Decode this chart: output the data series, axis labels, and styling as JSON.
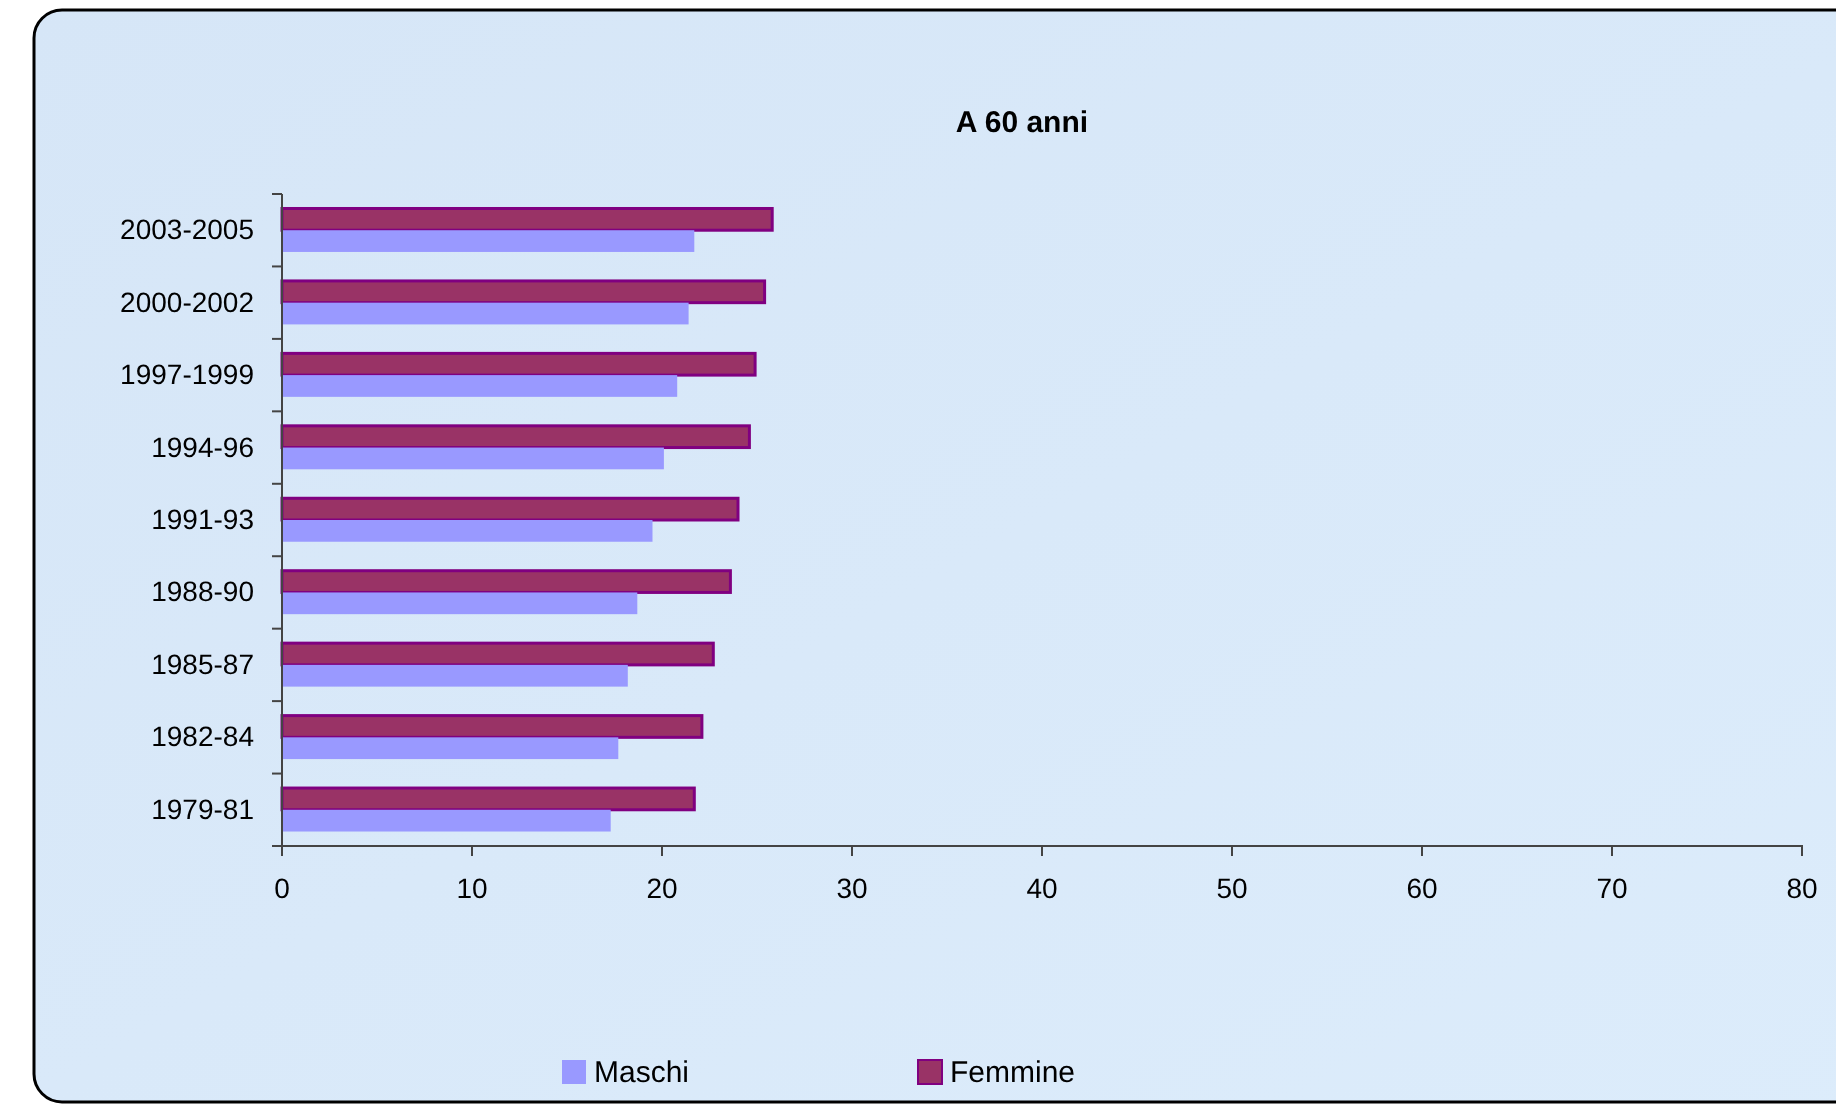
{
  "chart_data": {
    "type": "bar",
    "orientation": "horizontal",
    "title": "A 60 anni",
    "categories": [
      "2003-2005",
      "2000-2002",
      "1997-1999",
      "1994-96",
      "1991-93",
      "1988-90",
      "1985-87",
      "1982-84",
      "1979-81"
    ],
    "series": [
      {
        "name": "Femmine",
        "color": "#993366",
        "values": [
          25.8,
          25.4,
          24.9,
          24.6,
          24.0,
          23.6,
          22.7,
          22.1,
          21.7
        ]
      },
      {
        "name": "Maschi",
        "color": "#9999ff",
        "values": [
          21.7,
          21.4,
          20.8,
          20.1,
          19.5,
          18.7,
          18.2,
          17.7,
          17.3
        ]
      }
    ],
    "xlim": [
      0,
      80
    ],
    "xticks": [
      0,
      10,
      20,
      30,
      40,
      50,
      60,
      70,
      80
    ],
    "grid": false,
    "legend": "bottom"
  }
}
